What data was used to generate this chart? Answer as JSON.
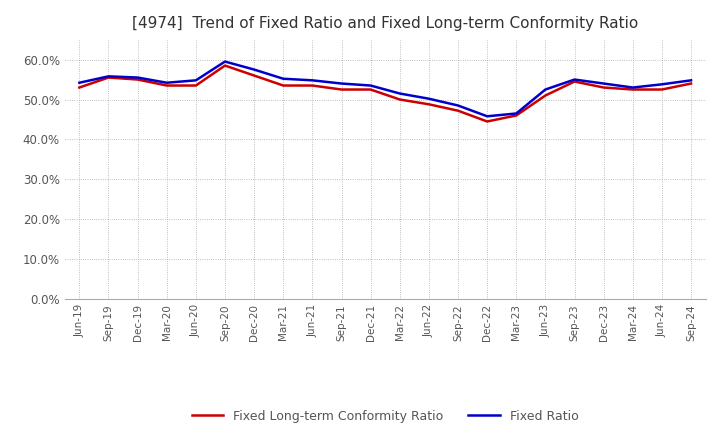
{
  "title": "[4974]  Trend of Fixed Ratio and Fixed Long-term Conformity Ratio",
  "x_labels": [
    "Jun-19",
    "Sep-19",
    "Dec-19",
    "Mar-20",
    "Jun-20",
    "Sep-20",
    "Dec-20",
    "Mar-21",
    "Jun-21",
    "Sep-21",
    "Dec-21",
    "Mar-22",
    "Jun-22",
    "Sep-22",
    "Dec-22",
    "Mar-23",
    "Jun-23",
    "Sep-23",
    "Dec-23",
    "Mar-24",
    "Jun-24",
    "Sep-24"
  ],
  "fixed_ratio": [
    54.2,
    55.8,
    55.5,
    54.2,
    54.8,
    59.5,
    57.5,
    55.2,
    54.8,
    54.0,
    53.5,
    51.5,
    50.2,
    48.5,
    45.8,
    46.5,
    52.5,
    55.0,
    54.0,
    53.0,
    53.8,
    54.8
  ],
  "fixed_lt_ratio": [
    53.0,
    55.5,
    55.0,
    53.5,
    53.5,
    58.5,
    56.0,
    53.5,
    53.5,
    52.5,
    52.5,
    50.0,
    48.8,
    47.2,
    44.5,
    46.0,
    51.0,
    54.5,
    53.0,
    52.5,
    52.5,
    54.0
  ],
  "fixed_ratio_color": "#0000cc",
  "fixed_lt_ratio_color": "#cc0000",
  "ylim": [
    0,
    65
  ],
  "yticks": [
    0,
    10,
    20,
    30,
    40,
    50,
    60
  ],
  "ytick_labels": [
    "0.0%",
    "10.0%",
    "20.0%",
    "30.0%",
    "40.0%",
    "50.0%",
    "60.0%"
  ],
  "grid_color": "#aaaaaa",
  "background_color": "#ffffff",
  "title_fontsize": 11,
  "legend_fixed_ratio": "Fixed Ratio",
  "legend_fixed_lt_ratio": "Fixed Long-term Conformity Ratio"
}
